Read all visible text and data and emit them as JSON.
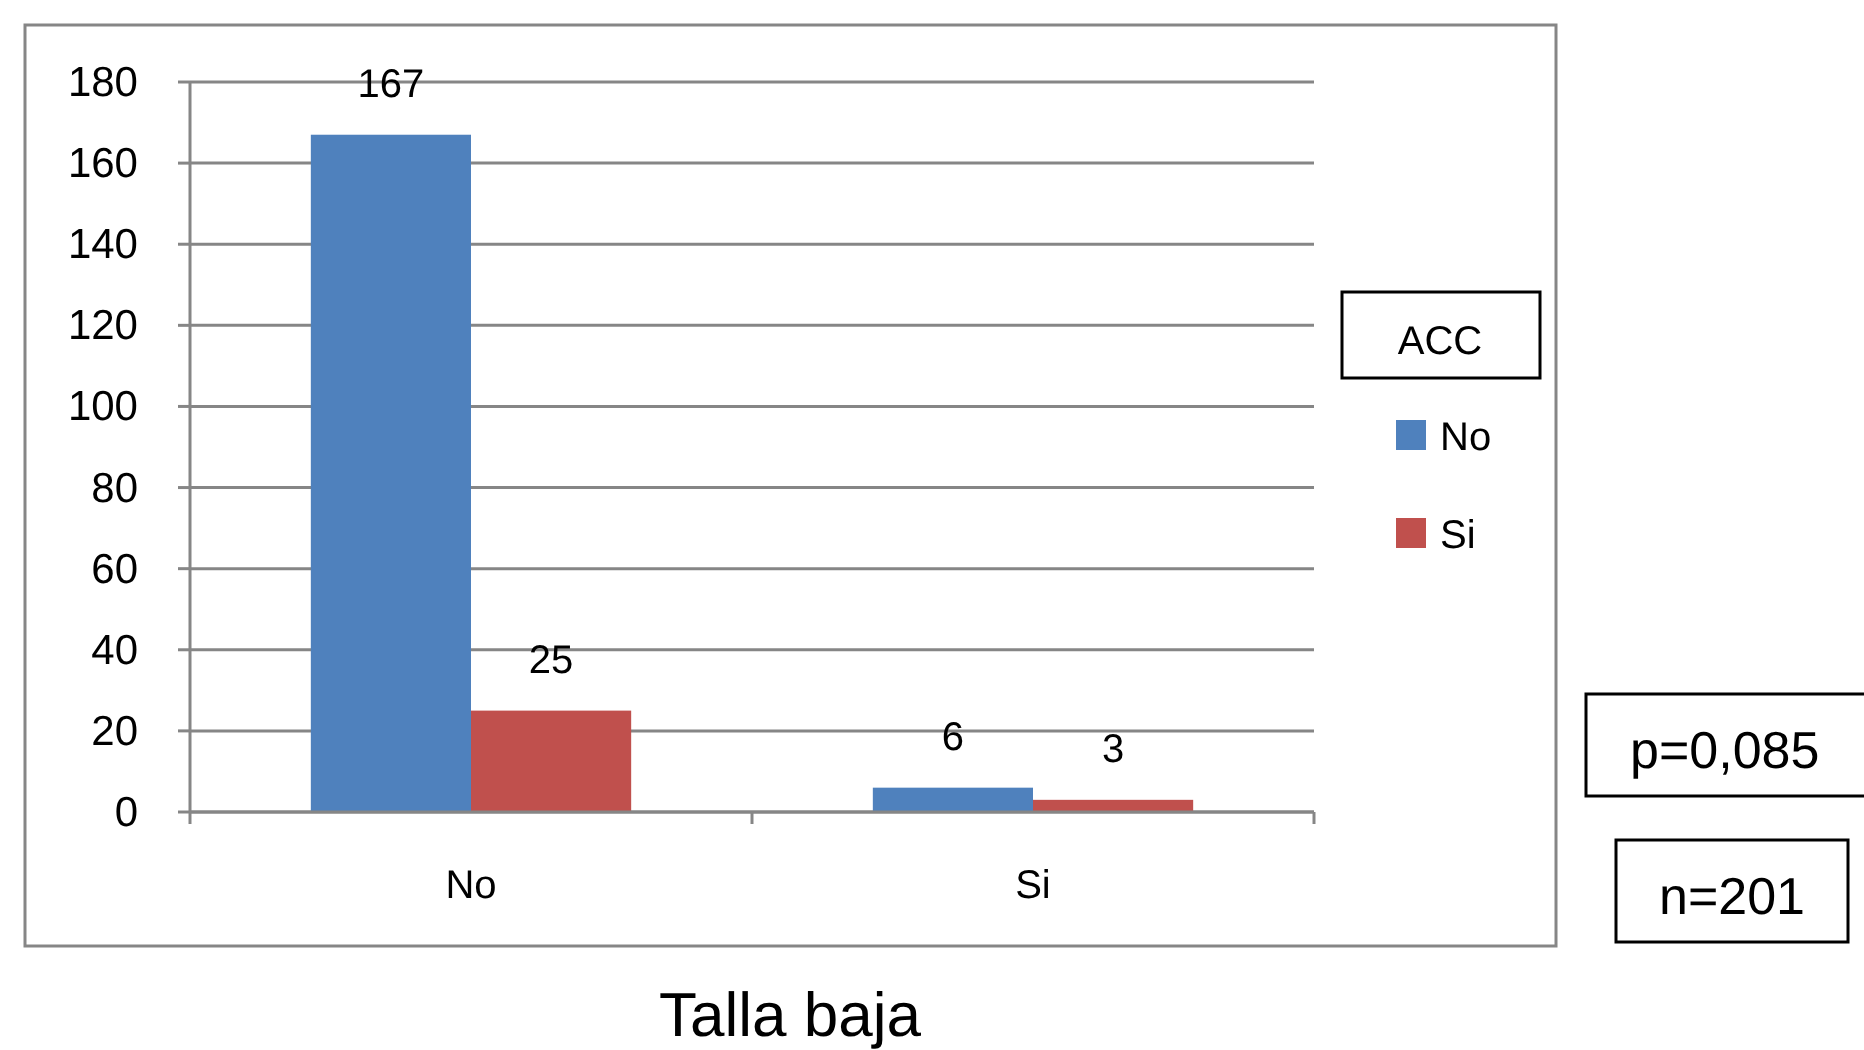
{
  "chart_data": {
    "type": "bar",
    "xlabel": "Talla baja",
    "legend_title": "ACC",
    "categories": [
      "No",
      "Si"
    ],
    "series": [
      {
        "name": "No",
        "color": "#4f81bd",
        "values": [
          167,
          6
        ]
      },
      {
        "name": "Si",
        "color": "#c0504d",
        "values": [
          25,
          3
        ]
      }
    ],
    "ylim": [
      0,
      180
    ],
    "yticks": [
      0,
      20,
      40,
      60,
      80,
      100,
      120,
      140,
      160,
      180
    ],
    "grid": "y",
    "legend": "right",
    "data_labels": true,
    "annotations": [
      "p=0,085",
      "n=201"
    ]
  }
}
